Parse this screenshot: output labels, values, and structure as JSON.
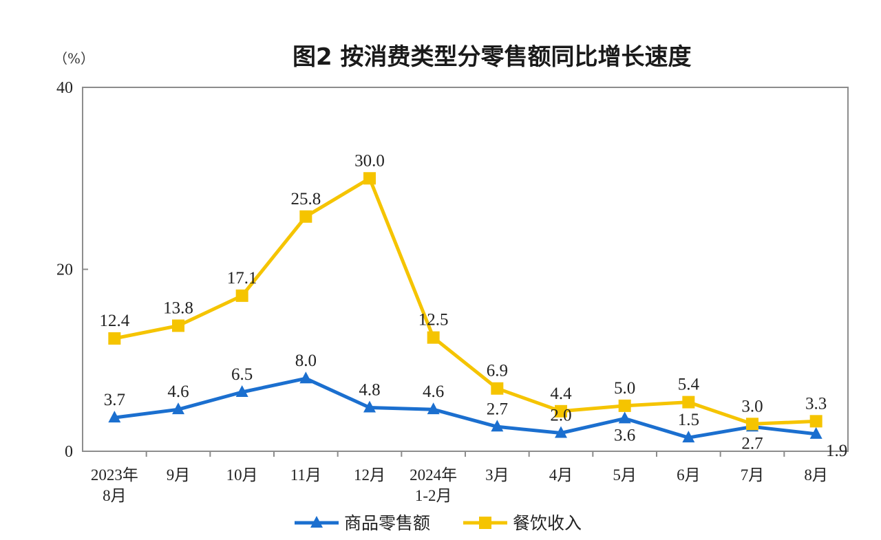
{
  "chart_data": {
    "type": "line",
    "title": "图2 按消费类型分零售额同比增长速度",
    "unit": "（%）",
    "xlabel": "",
    "ylabel": "",
    "ylim": [
      0,
      40
    ],
    "yticks": [
      0,
      20,
      40
    ],
    "grid": false,
    "legend_position": "bottom",
    "categories": [
      [
        "2023年",
        "8月"
      ],
      [
        "9月"
      ],
      [
        "10月"
      ],
      [
        "11月"
      ],
      [
        "12月"
      ],
      [
        "2024年",
        "1-2月"
      ],
      [
        "3月"
      ],
      [
        "4月"
      ],
      [
        "5月"
      ],
      [
        "6月"
      ],
      [
        "7月"
      ],
      [
        "8月"
      ]
    ],
    "series": [
      {
        "name": "商品零售额",
        "color": "#1b6fcf",
        "marker": "triangle",
        "values": [
          3.7,
          4.6,
          6.5,
          8.0,
          4.8,
          4.6,
          2.7,
          2.0,
          3.6,
          1.5,
          2.7,
          1.9
        ],
        "labels": [
          "3.7",
          "4.6",
          "6.5",
          "8.0",
          "4.8",
          "4.6",
          "2.7",
          "2.0",
          "3.6",
          "1.5",
          "2.7",
          "1.9"
        ],
        "label_positions": [
          "above",
          "above",
          "above",
          "above",
          "above",
          "above",
          "above",
          "above",
          "below",
          "above",
          "below",
          "below"
        ]
      },
      {
        "name": "餐饮收入",
        "color": "#f5c400",
        "marker": "square",
        "values": [
          12.4,
          13.8,
          17.1,
          25.8,
          30.0,
          12.5,
          6.9,
          4.4,
          5.0,
          5.4,
          3.0,
          3.3
        ],
        "labels": [
          "12.4",
          "13.8",
          "17.1",
          "25.8",
          "30.0",
          "12.5",
          "6.9",
          "4.4",
          "5.0",
          "5.4",
          "3.0",
          "3.3"
        ],
        "label_positions": [
          "above",
          "above",
          "above",
          "above",
          "above",
          "above",
          "above",
          "above",
          "above",
          "above",
          "above",
          "above"
        ]
      }
    ]
  }
}
